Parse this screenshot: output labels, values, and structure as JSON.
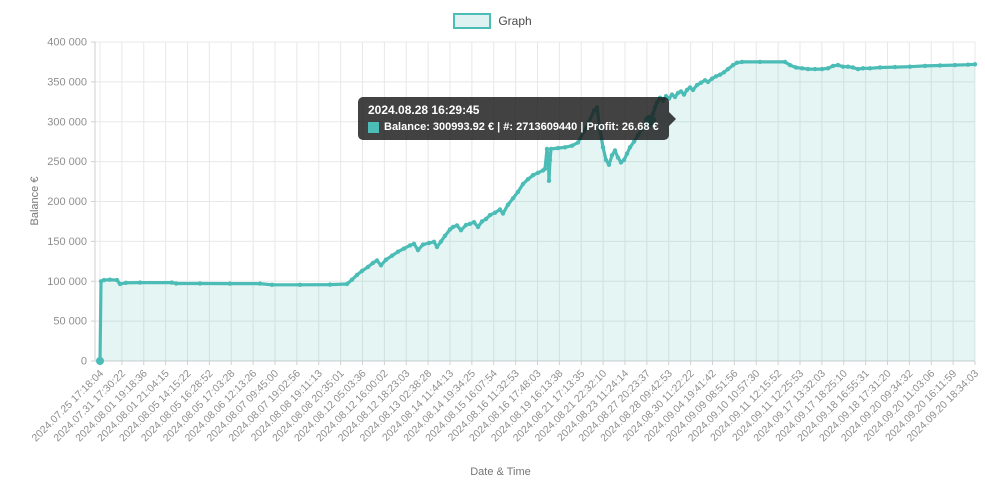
{
  "legend": {
    "label": "Graph"
  },
  "tooltip": {
    "title": "2024.08.28 16:29:45",
    "body": "Balance: 300993.92 € | #: 2713609440 | Profit: 26.68 €"
  },
  "chart_data": {
    "type": "area",
    "title": "",
    "xlabel": "Date & Time",
    "ylabel": "Balance €",
    "ylim": [
      0,
      400000
    ],
    "grid": true,
    "legend_position": "top-center",
    "colors": {
      "line": "#4bbcb6",
      "fill": "rgba(75,188,182,0.15)",
      "highlight": "#40cec8",
      "grid": "#e8e8e8",
      "axis": "#cfcfcf",
      "tick_text": "#8e8e8e",
      "axis_title": "#767676"
    },
    "y_ticks": [
      0,
      50000,
      100000,
      150000,
      200000,
      250000,
      300000,
      350000,
      400000
    ],
    "y_tick_labels": [
      "0",
      "50 000",
      "100 000",
      "150 000",
      "200 000",
      "250 000",
      "300 000",
      "350 000",
      "400 000"
    ],
    "x_tick_labels": [
      "2024.07.25 17:18:04",
      "2024.07.31 17:30:22",
      "2024.08.01 19:18:36",
      "2024.08.01 21:04:15",
      "2024.08.05 14:15:22",
      "2024.08.05 16:28:52",
      "2024.08.05 17:03:28",
      "2024.08.06 12:13:26",
      "2024.08.07 09:45:00",
      "2024.08.07 19:02:56",
      "2024.08.08 19:11:13",
      "2024.08.08 20:35:01",
      "2024.08.12 05:03:36",
      "2024.08.12 16:00:02",
      "2024.08.12 18:23:03",
      "2024.08.13 02:38:28",
      "2024.08.14 11:44:13",
      "2024.08.14 19:34:25",
      "2024.08.15 16:07:54",
      "2024.08.16 11:32:53",
      "2024.08.16 17:48:03",
      "2024.08.19 16:13:38",
      "2024.08.21 17:13:35",
      "2024.08.21 22:32:10",
      "2024.08.23 11:24:14",
      "2024.08.27 20:23:37",
      "2024.08.28 09:42:53",
      "2024.08.30 11:22:22",
      "2024.09.04 19:41:42",
      "2024.09.09 08:51:56",
      "2024.09.10 10:57:30",
      "2024.09.11 12:15:52",
      "2024.09.11 12:25:53",
      "2024.09.17 13:32:03",
      "2024.09.17 18:25:10",
      "2024.09.18 16:55:31",
      "2024.09.18 17:31:20",
      "2024.09.20 09:34:32",
      "2024.09.20 11:03:06",
      "2024.09.20 16:11:59",
      "2024.09.20 18:34:03"
    ],
    "highlight_point": {
      "f": 0.6286,
      "value": 300993.92,
      "label": "2024.08.28 16:29:45"
    },
    "series": [
      {
        "name": "Graph",
        "points": [
          [
            0.0,
            0
          ],
          [
            0.0011,
            100000
          ],
          [
            0.0046,
            101500
          ],
          [
            0.0114,
            102000
          ],
          [
            0.0194,
            101500
          ],
          [
            0.0229,
            96500
          ],
          [
            0.0297,
            98000
          ],
          [
            0.0457,
            98300
          ],
          [
            0.082,
            98300
          ],
          [
            0.087,
            97200
          ],
          [
            0.1143,
            97200
          ],
          [
            0.1486,
            97100
          ],
          [
            0.1829,
            97000
          ],
          [
            0.1966,
            95600
          ],
          [
            0.2286,
            95600
          ],
          [
            0.2629,
            95800
          ],
          [
            0.2823,
            96500
          ],
          [
            0.288,
            102000
          ],
          [
            0.2937,
            108000
          ],
          [
            0.2994,
            113000
          ],
          [
            0.3063,
            118000
          ],
          [
            0.312,
            123000
          ],
          [
            0.3166,
            126000
          ],
          [
            0.3211,
            120000
          ],
          [
            0.3269,
            127000
          ],
          [
            0.3337,
            132000
          ],
          [
            0.3406,
            137000
          ],
          [
            0.3474,
            141000
          ],
          [
            0.3543,
            145000
          ],
          [
            0.3589,
            147000
          ],
          [
            0.3634,
            139000
          ],
          [
            0.3691,
            146000
          ],
          [
            0.376,
            148000
          ],
          [
            0.3817,
            149500
          ],
          [
            0.3851,
            143000
          ],
          [
            0.3897,
            150000
          ],
          [
            0.3943,
            157000
          ],
          [
            0.4,
            165000
          ],
          [
            0.4034,
            168000
          ],
          [
            0.408,
            170000
          ],
          [
            0.4126,
            164000
          ],
          [
            0.4183,
            170500
          ],
          [
            0.4229,
            172000
          ],
          [
            0.4274,
            174000
          ],
          [
            0.432,
            168000
          ],
          [
            0.4366,
            175000
          ],
          [
            0.4411,
            178000
          ],
          [
            0.4457,
            183000
          ],
          [
            0.4514,
            186000
          ],
          [
            0.4571,
            190000
          ],
          [
            0.4606,
            185000
          ],
          [
            0.4663,
            196000
          ],
          [
            0.472,
            204000
          ],
          [
            0.4777,
            212000
          ],
          [
            0.4834,
            222000
          ],
          [
            0.4891,
            228000
          ],
          [
            0.4949,
            233000
          ],
          [
            0.5006,
            236000
          ],
          [
            0.5063,
            239000
          ],
          [
            0.5086,
            241000
          ],
          [
            0.5109,
            266000
          ],
          [
            0.5125,
            252000
          ],
          [
            0.5131,
            226000
          ],
          [
            0.5143,
            252000
          ],
          [
            0.5154,
            266000
          ],
          [
            0.5234,
            267000
          ],
          [
            0.5314,
            268000
          ],
          [
            0.5394,
            270000
          ],
          [
            0.5463,
            274000
          ],
          [
            0.5531,
            288000
          ],
          [
            0.5589,
            300000
          ],
          [
            0.5646,
            314000
          ],
          [
            0.568,
            318000
          ],
          [
            0.5714,
            290000
          ],
          [
            0.5749,
            268000
          ],
          [
            0.5783,
            252000
          ],
          [
            0.5817,
            246000
          ],
          [
            0.5851,
            258000
          ],
          [
            0.5886,
            264000
          ],
          [
            0.592,
            255000
          ],
          [
            0.5954,
            249000
          ],
          [
            0.5989,
            252000
          ],
          [
            0.6023,
            260000
          ],
          [
            0.6057,
            268000
          ],
          [
            0.6103,
            275000
          ],
          [
            0.6149,
            283000
          ],
          [
            0.6194,
            291000
          ],
          [
            0.624,
            296000
          ],
          [
            0.6286,
            300993.92
          ],
          [
            0.632,
            310000
          ],
          [
            0.6343,
            318000
          ],
          [
            0.6366,
            324000
          ],
          [
            0.64,
            330000
          ],
          [
            0.6434,
            326000
          ],
          [
            0.6469,
            332000
          ],
          [
            0.6503,
            329000
          ],
          [
            0.6537,
            334000
          ],
          [
            0.6571,
            331000
          ],
          [
            0.6606,
            336000
          ],
          [
            0.664,
            338000
          ],
          [
            0.6674,
            334000
          ],
          [
            0.6709,
            340000
          ],
          [
            0.6743,
            343000
          ],
          [
            0.6777,
            340000
          ],
          [
            0.6823,
            346000
          ],
          [
            0.6869,
            349000
          ],
          [
            0.6914,
            352000
          ],
          [
            0.6949,
            350000
          ],
          [
            0.6994,
            354000
          ],
          [
            0.704,
            357000
          ],
          [
            0.7086,
            359000
          ],
          [
            0.7131,
            362000
          ],
          [
            0.7177,
            366000
          ],
          [
            0.7234,
            371000
          ],
          [
            0.728,
            374000
          ],
          [
            0.7337,
            375000
          ],
          [
            0.7543,
            375000
          ],
          [
            0.7829,
            375000
          ],
          [
            0.7886,
            371000
          ],
          [
            0.7954,
            368000
          ],
          [
            0.8023,
            367000
          ],
          [
            0.8091,
            366000
          ],
          [
            0.8171,
            366000
          ],
          [
            0.8251,
            366000
          ],
          [
            0.832,
            367000
          ],
          [
            0.8377,
            370000
          ],
          [
            0.8434,
            371000
          ],
          [
            0.8491,
            369000
          ],
          [
            0.8549,
            369000
          ],
          [
            0.8606,
            368000
          ],
          [
            0.8663,
            366000
          ],
          [
            0.872,
            367000
          ],
          [
            0.88,
            367000
          ],
          [
            0.8914,
            368000
          ],
          [
            0.9086,
            368500
          ],
          [
            0.9257,
            369000
          ],
          [
            0.9429,
            370000
          ],
          [
            0.96,
            370500
          ],
          [
            0.9771,
            371000
          ],
          [
            0.992,
            371500
          ],
          [
            1.0,
            372000
          ]
        ]
      }
    ]
  }
}
